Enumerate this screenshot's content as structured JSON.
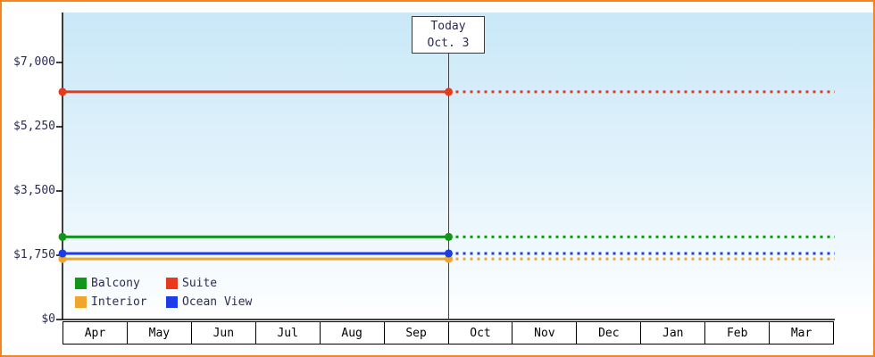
{
  "colors": {
    "frame_border": "#f5851f",
    "plot_bg_top": "#c9e8f8",
    "plot_bg_mid": "#e6f4fc",
    "plot_bg_bottom": "#ffffff",
    "axis": "#000000",
    "text": "#2b2b55",
    "today_line": "#444444"
  },
  "chart_data": {
    "type": "line",
    "title": "",
    "today_label": {
      "line1": "Today",
      "line2": "Oct. 3"
    },
    "today_boundary_index": 6,
    "x_categories": [
      "Apr",
      "May",
      "Jun",
      "Jul",
      "Aug",
      "Sep",
      "Oct",
      "Nov",
      "Dec",
      "Jan",
      "Feb",
      "Mar"
    ],
    "y_ticks": [
      {
        "label": "$0",
        "value": 0
      },
      {
        "label": "$1,750",
        "value": 1750
      },
      {
        "label": "$3,500",
        "value": 3500
      },
      {
        "label": "$5,250",
        "value": 5250
      },
      {
        "label": "$7,000",
        "value": 7000
      }
    ],
    "ylim": [
      0,
      7000
    ],
    "line_style": "solid before today, dotted after today, round markers at start and at today",
    "series": [
      {
        "name": "Balcony",
        "color": "#109618",
        "value": 2250
      },
      {
        "name": "Suite",
        "color": "#e8391c",
        "value": 6200
      },
      {
        "name": "Interior",
        "color": "#f0a52c",
        "value": 1650
      },
      {
        "name": "Ocean View",
        "color": "#1c3ce8",
        "value": 1800
      }
    ]
  }
}
